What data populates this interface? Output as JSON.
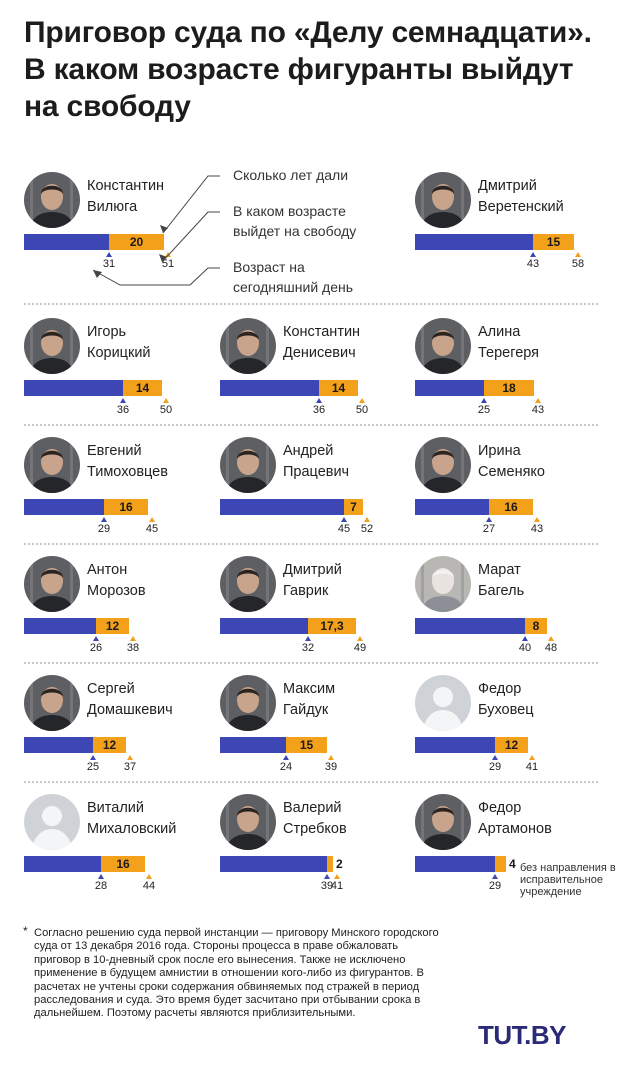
{
  "title": "Приговор суда по «Делу семнадцати». В каком возрасте фигуранты выйдут на свободу",
  "legend": {
    "years_given": "Сколько лет дали",
    "release_age": "В каком возрасте выйдет на свободу",
    "current_age": "Возраст на сегодняшний день"
  },
  "people": [
    {
      "first": "Константин",
      "last": "Вилюга",
      "now": "31",
      "term": "20",
      "release": "51",
      "photo": "dark"
    },
    {
      "first": "Дмитрий",
      "last": "Веретенский",
      "now": "43",
      "term": "15",
      "release": "58",
      "photo": "dark"
    },
    {
      "first": "Игорь",
      "last": "Корицкий",
      "now": "36",
      "term": "14",
      "release": "50",
      "photo": "dark"
    },
    {
      "first": "Константин",
      "last": "Денисевич",
      "now": "36",
      "term": "14",
      "release": "50",
      "photo": "dark"
    },
    {
      "first": "Алина",
      "last": "Терегеря",
      "now": "25",
      "term": "18",
      "release": "43",
      "photo": "dark"
    },
    {
      "first": "Евгений",
      "last": "Тимоховцев",
      "now": "29",
      "term": "16",
      "release": "45",
      "photo": "dark"
    },
    {
      "first": "Андрей",
      "last": "Працевич",
      "now": "45",
      "term": "7",
      "release": "52",
      "photo": "dark"
    },
    {
      "first": "Ирина",
      "last": "Семеняко",
      "now": "27",
      "term": "16",
      "release": "43",
      "photo": "dark"
    },
    {
      "first": "Антон",
      "last": "Морозов",
      "now": "26",
      "term": "12",
      "release": "38",
      "photo": "dark"
    },
    {
      "first": "Дмитрий",
      "last": "Гаврик",
      "now": "32",
      "term": "17,3",
      "release": "49",
      "photo": "dark"
    },
    {
      "first": "Марат",
      "last": "Багель",
      "now": "40",
      "term": "8",
      "release": "48",
      "photo": "light"
    },
    {
      "first": "Сергей",
      "last": "Домашкевич",
      "now": "25",
      "term": "12",
      "release": "37",
      "photo": "dark"
    },
    {
      "first": "Максим",
      "last": "Гайдук",
      "now": "24",
      "term": "15",
      "release": "39",
      "photo": "dark"
    },
    {
      "first": "Федор",
      "last": "Буховец",
      "now": "29",
      "term": "12",
      "release": "41",
      "photo": "silhouette"
    },
    {
      "first": "Виталий",
      "last": "Михаловский",
      "now": "28",
      "term": "16",
      "release": "44",
      "photo": "silhouette"
    },
    {
      "first": "Валерий",
      "last": "Стребков",
      "now": "39",
      "term": "2",
      "release": "41",
      "photo": "dark"
    },
    {
      "first": "Федор",
      "last": "Артамонов",
      "now": "29",
      "term": "4",
      "release": "",
      "photo": "dark",
      "note": "без направления в исправительное учреждение"
    }
  ],
  "footnote": {
    "star": "*",
    "text": "Согласно решению суда первой инстанции — приговору Минского городского суда от 13 декабря 2016 года. Стороны процесса в праве обжаловать приговор в 10-дневный срок после его вынесения. Также не исключено применение в будущем амнистии в отношении кого-либо из фигурантов. В расчетах не учтены сроки содержания обвиняемых под стражей в период расследования и суда. Это время будет засчитано при отбывании срока в дальнейшем. Поэтому расчеты являются приблизительными."
  },
  "logo": "TUT.BY",
  "colors": {
    "current_age_bar": "#3c46b4",
    "term_bar": "#f3a01b",
    "logo": "#2a2a78"
  }
}
